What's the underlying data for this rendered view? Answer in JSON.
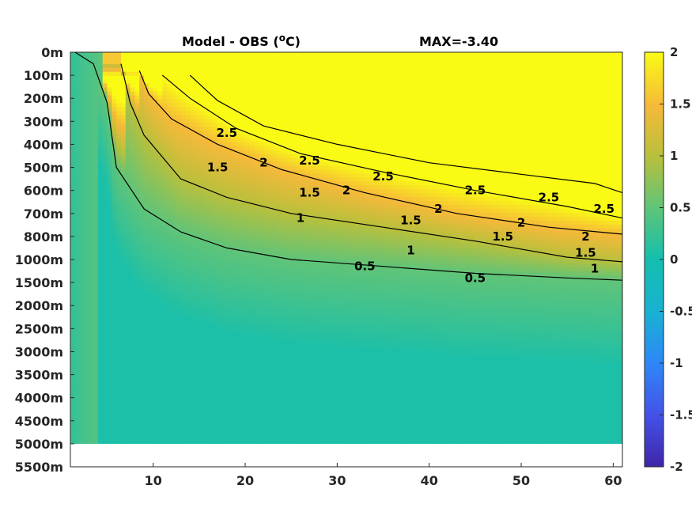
{
  "chart_data": {
    "type": "heatmap",
    "title": "Model - OBS (",
    "title_unit_sup": "o",
    "title_unit_end": "C)",
    "max_annotation": "MAX=-3.40",
    "x_ticks": [
      10,
      20,
      30,
      40,
      50,
      60
    ],
    "xlim": [
      1,
      61
    ],
    "y_ticks": [
      "0m",
      "100m",
      "200m",
      "300m",
      "400m",
      "500m",
      "600m",
      "700m",
      "800m",
      "1000m",
      "1500m",
      "2000m",
      "2500m",
      "3000m",
      "3500m",
      "4000m",
      "4500m",
      "5000m",
      "5500m"
    ],
    "data_bottom_label": "5000m",
    "colorbar": {
      "ticks": [
        "2",
        "1.5",
        "1",
        "0.5",
        "0",
        "-0.5",
        "-1",
        "-1.5",
        "-2"
      ],
      "clim": [
        -2,
        2
      ],
      "colormap": "parula"
    },
    "contours": [
      {
        "level": "0.5",
        "points": [
          [
            1.5,
            0
          ],
          [
            3.5,
            0.5
          ],
          [
            5,
            2.2
          ],
          [
            6,
            5
          ],
          [
            9,
            6.8
          ],
          [
            13,
            7.8
          ],
          [
            18,
            8.5
          ],
          [
            25,
            9.0
          ],
          [
            35,
            9.3
          ],
          [
            45,
            9.6
          ],
          [
            55,
            9.8
          ],
          [
            61,
            9.9
          ]
        ]
      },
      {
        "level": "1",
        "points": [
          [
            6.5,
            0.5
          ],
          [
            7.5,
            2.2
          ],
          [
            9,
            3.6
          ],
          [
            13,
            5.5
          ],
          [
            18,
            6.3
          ],
          [
            25,
            7.0
          ],
          [
            35,
            7.6
          ],
          [
            45,
            8.2
          ],
          [
            55,
            8.9
          ],
          [
            61,
            9.1
          ]
        ]
      },
      {
        "level": "1.5",
        "points": [
          [
            8.5,
            0.8
          ],
          [
            9.5,
            1.8
          ],
          [
            12,
            2.9
          ],
          [
            17,
            4.0
          ],
          [
            24,
            5.1
          ],
          [
            33,
            6.1
          ],
          [
            43,
            7.0
          ],
          [
            53,
            7.6
          ],
          [
            61,
            7.9
          ]
        ]
      },
      {
        "level": "2",
        "points": [
          [
            11,
            1.0
          ],
          [
            14,
            2.0
          ],
          [
            19,
            3.3
          ],
          [
            26,
            4.4
          ],
          [
            35,
            5.2
          ],
          [
            45,
            6.0
          ],
          [
            55,
            6.7
          ],
          [
            61,
            7.2
          ]
        ]
      },
      {
        "level": "2.5",
        "points": [
          [
            14,
            1.0
          ],
          [
            17,
            2.1
          ],
          [
            22,
            3.2
          ],
          [
            30,
            4.0
          ],
          [
            40,
            4.8
          ],
          [
            50,
            5.3
          ],
          [
            58,
            5.7
          ],
          [
            61,
            6.1
          ]
        ]
      }
    ],
    "contour_labels": [
      {
        "text": "0.5",
        "x": 33,
        "y": 9.3
      },
      {
        "text": "0.5",
        "x": 45,
        "y": 9.8
      },
      {
        "text": "1",
        "x": 26,
        "y": 7.2
      },
      {
        "text": "1",
        "x": 38,
        "y": 8.6
      },
      {
        "text": "1",
        "x": 58,
        "y": 9.4
      },
      {
        "text": "1.5",
        "x": 17,
        "y": 5.0
      },
      {
        "text": "1.5",
        "x": 27,
        "y": 6.1
      },
      {
        "text": "1.5",
        "x": 38,
        "y": 7.3
      },
      {
        "text": "1.5",
        "x": 48,
        "y": 8.0
      },
      {
        "text": "1.5",
        "x": 57,
        "y": 8.7
      },
      {
        "text": "2",
        "x": 22,
        "y": 4.8
      },
      {
        "text": "2",
        "x": 31,
        "y": 6.0
      },
      {
        "text": "2",
        "x": 41,
        "y": 6.8
      },
      {
        "text": "2",
        "x": 50,
        "y": 7.4
      },
      {
        "text": "2",
        "x": 57,
        "y": 8.0
      },
      {
        "text": "2.5",
        "x": 18,
        "y": 3.5
      },
      {
        "text": "2.5",
        "x": 27,
        "y": 4.7
      },
      {
        "text": "2.5",
        "x": 35,
        "y": 5.4
      },
      {
        "text": "2.5",
        "x": 45,
        "y": 6.0
      },
      {
        "text": "2.5",
        "x": 53,
        "y": 6.3
      },
      {
        "text": "2.5",
        "x": 59,
        "y": 6.8
      }
    ]
  }
}
